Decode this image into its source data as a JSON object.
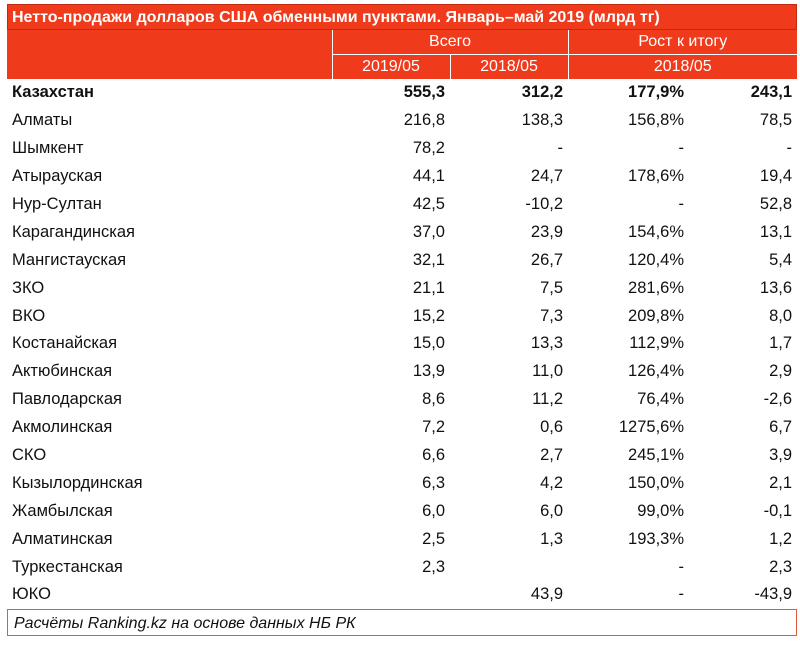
{
  "title": "Нетто-продажи долларов США обменными пунктами. Январь–май 2019 (млрд тг)",
  "header": {
    "group1": "Всего",
    "group2": "Рост к итогу",
    "col1": "2019/05",
    "col2": "2018/05",
    "col34": "2018/05"
  },
  "rows": [
    {
      "name": "Казахстан",
      "v2019": "555,3",
      "v2018": "312,2",
      "growth": "177,9%",
      "diff": "243,1"
    },
    {
      "name": "Алматы",
      "v2019": "216,8",
      "v2018": "138,3",
      "growth": "156,8%",
      "diff": "78,5"
    },
    {
      "name": "Шымкент",
      "v2019": "78,2",
      "v2018": "-",
      "growth": "-",
      "diff": "-"
    },
    {
      "name": "Атырауская",
      "v2019": "44,1",
      "v2018": "24,7",
      "growth": "178,6%",
      "diff": "19,4"
    },
    {
      "name": "Нур-Султан",
      "v2019": "42,5",
      "v2018": "-10,2",
      "growth": "-",
      "diff": "52,8"
    },
    {
      "name": "Карагандинская",
      "v2019": "37,0",
      "v2018": "23,9",
      "growth": "154,6%",
      "diff": "13,1"
    },
    {
      "name": "Мангистауская",
      "v2019": "32,1",
      "v2018": "26,7",
      "growth": "120,4%",
      "diff": "5,4"
    },
    {
      "name": "ЗКО",
      "v2019": "21,1",
      "v2018": "7,5",
      "growth": "281,6%",
      "diff": "13,6"
    },
    {
      "name": "ВКО",
      "v2019": "15,2",
      "v2018": "7,3",
      "growth": "209,8%",
      "diff": "8,0"
    },
    {
      "name": "Костанайская",
      "v2019": "15,0",
      "v2018": "13,3",
      "growth": "112,9%",
      "diff": "1,7"
    },
    {
      "name": "Актюбинская",
      "v2019": "13,9",
      "v2018": "11,0",
      "growth": "126,4%",
      "diff": "2,9"
    },
    {
      "name": "Павлодарская",
      "v2019": "8,6",
      "v2018": "11,2",
      "growth": "76,4%",
      "diff": "-2,6"
    },
    {
      "name": "Акмолинская",
      "v2019": "7,2",
      "v2018": "0,6",
      "growth": "1275,6%",
      "diff": "6,7"
    },
    {
      "name": "СКО",
      "v2019": "6,6",
      "v2018": "2,7",
      "growth": "245,1%",
      "diff": "3,9"
    },
    {
      "name": "Кызылординская",
      "v2019": "6,3",
      "v2018": "4,2",
      "growth": "150,0%",
      "diff": "2,1"
    },
    {
      "name": "Жамбылская",
      "v2019": "6,0",
      "v2018": "6,0",
      "growth": "99,0%",
      "diff": "-0,1"
    },
    {
      "name": "Алматинская",
      "v2019": "2,5",
      "v2018": "1,3",
      "growth": "193,3%",
      "diff": "1,2"
    },
    {
      "name": "Туркестанская",
      "v2019": "2,3",
      "v2018": "",
      "growth": "-",
      "diff": "2,3"
    },
    {
      "name": "ЮКО",
      "v2019": "",
      "v2018": "43,9",
      "growth": "-",
      "diff": "-43,9"
    }
  ],
  "footer": "Расчёты Ranking.kz на основе данных НБ РК"
}
